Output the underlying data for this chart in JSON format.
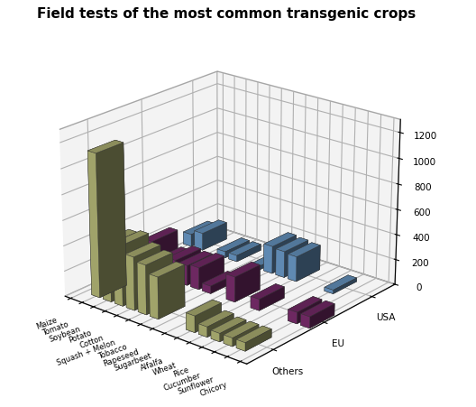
{
  "title": "Field tests of the most common transgenic crops",
  "categories": [
    "Maize",
    "Tomato",
    "Soybean",
    "Potato",
    "Cotton",
    "Squash + Melon",
    "Tobacco",
    "Rapeseed",
    "Sugarbeet",
    "Alfalfa",
    "Wheat",
    "Rice",
    "Cucumber",
    "Sunflower",
    "Chicory"
  ],
  "series": [
    "Others",
    "EU",
    "USA"
  ],
  "values": {
    "USA": [
      100,
      140,
      0,
      50,
      50,
      0,
      30,
      220,
      210,
      200,
      0,
      0,
      30,
      0,
      0
    ],
    "EU": [
      0,
      260,
      130,
      170,
      160,
      175,
      60,
      0,
      200,
      0,
      90,
      0,
      0,
      90,
      90
    ],
    "Others": [
      0,
      1130,
      460,
      480,
      420,
      390,
      330,
      0,
      0,
      130,
      80,
      65,
      65,
      65,
      0
    ]
  },
  "colors": {
    "USA": "#6b9bc9",
    "EU": "#7b2d6e",
    "Others": "#b5b878"
  },
  "zlim": [
    0,
    1300
  ],
  "zticks": [
    0,
    200,
    400,
    600,
    800,
    1000,
    1200
  ],
  "title_fontsize": 11,
  "elev": 22,
  "azim": -50
}
